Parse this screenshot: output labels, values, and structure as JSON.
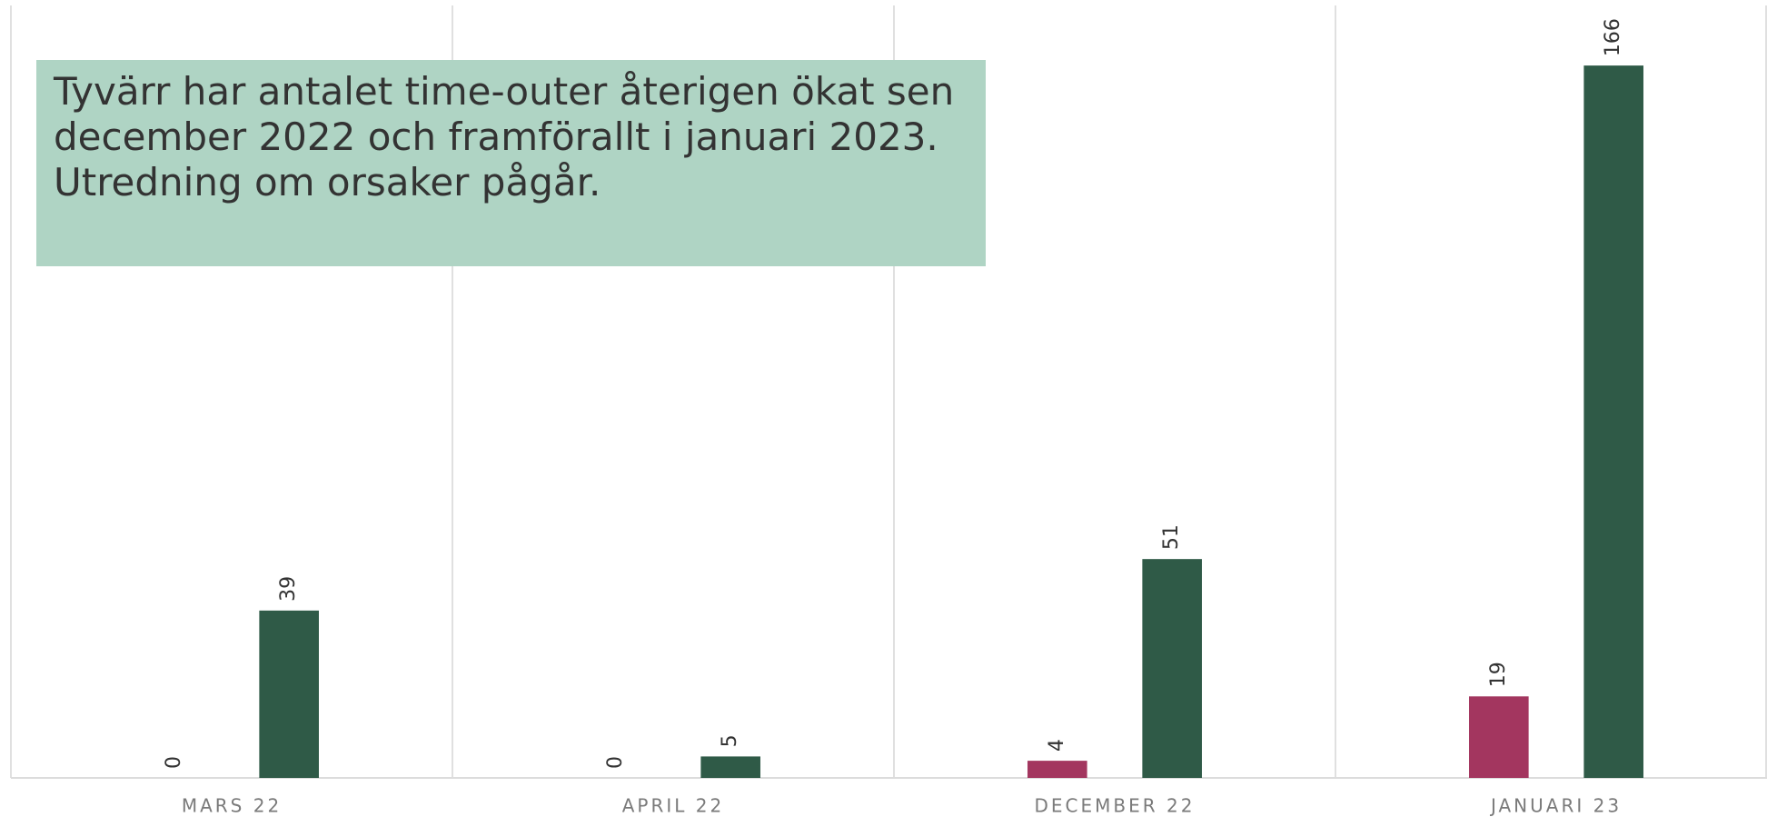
{
  "chart_data": {
    "type": "bar",
    "categories": [
      "MARS 22",
      "APRIL 22",
      "DECEMBER 22",
      "JANUARI 23"
    ],
    "series": [
      {
        "color": "#a3365f",
        "values": [
          0,
          0,
          4,
          19
        ]
      },
      {
        "color": "#2f5a47",
        "values": [
          39,
          5,
          51,
          166
        ]
      }
    ],
    "ylim": [
      0,
      180
    ],
    "annotation": [
      "Tyvärr har antalet time-outer återigen ökat sen",
      "december 2022 och framförallt i januari 2023.",
      "Utredning om orsaker pågår."
    ]
  }
}
